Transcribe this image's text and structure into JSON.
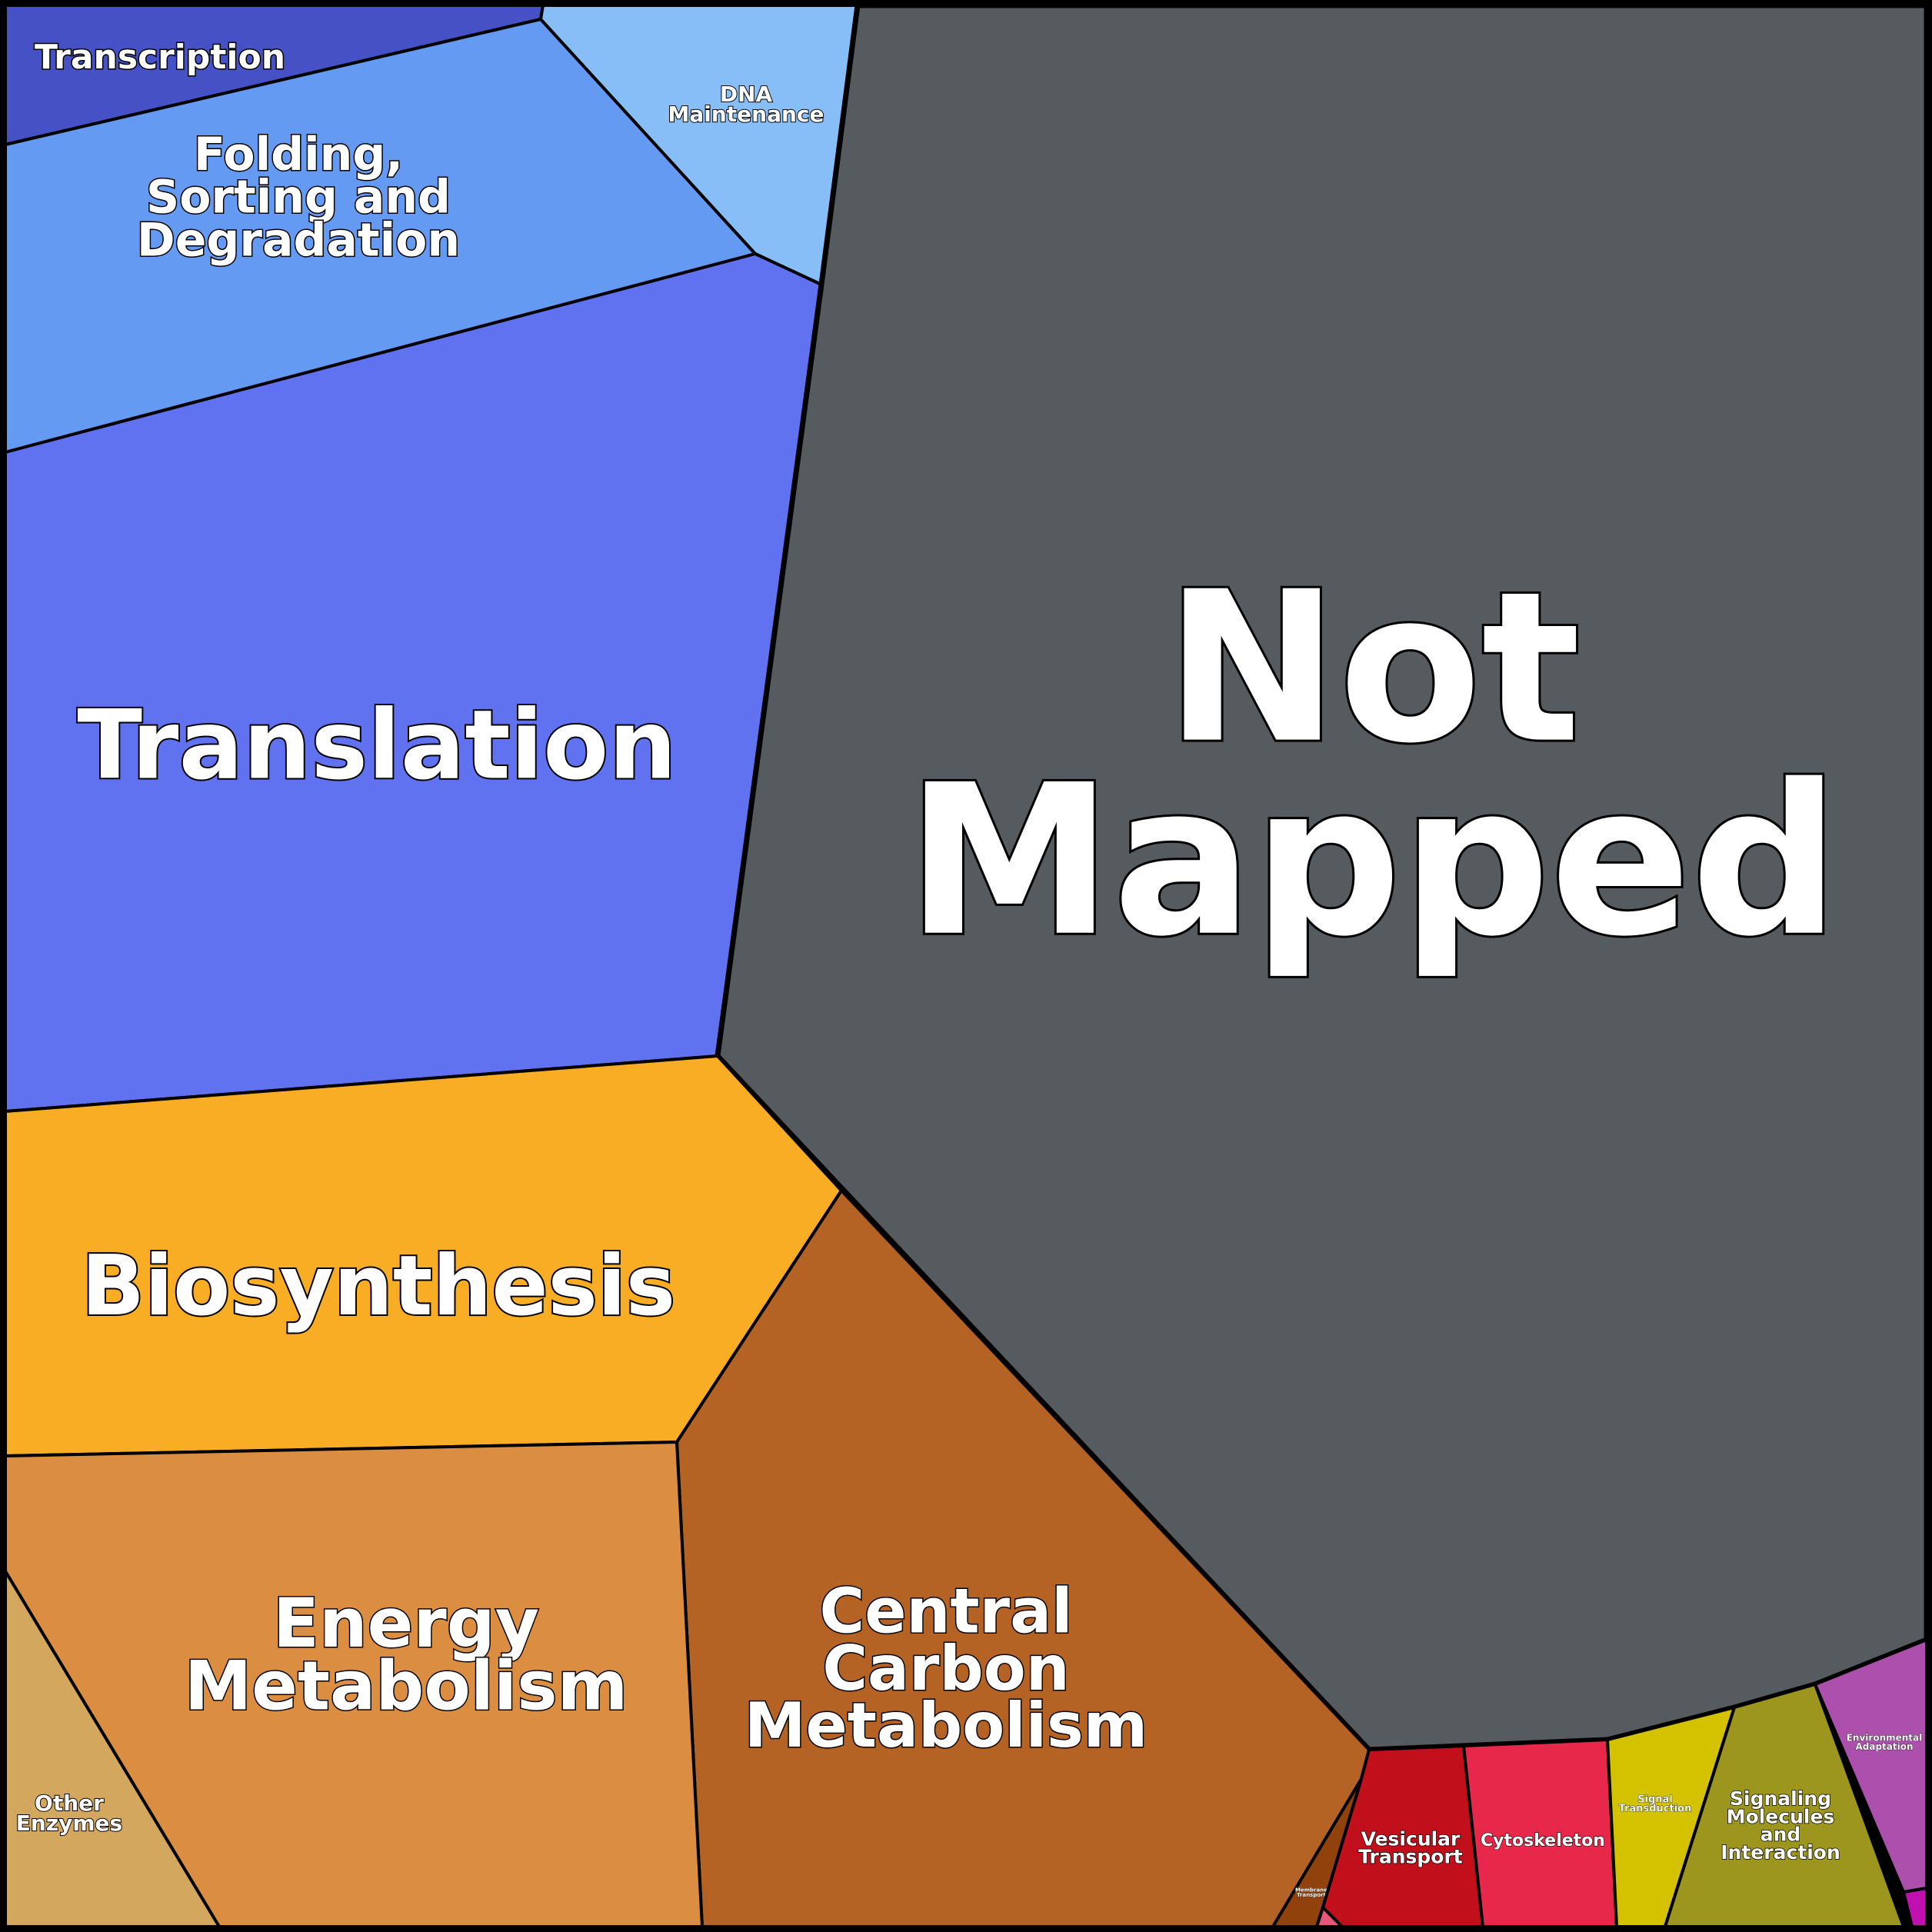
{
  "regions": [
    {
      "id": "transcription",
      "lines": [
        "Transcription"
      ],
      "color": "#4551c4"
    },
    {
      "id": "folding",
      "lines": [
        "Folding,",
        "Sorting and",
        "Degradation"
      ],
      "color": "#659af2"
    },
    {
      "id": "dna",
      "lines": [
        "DNA",
        "Maintenance"
      ],
      "color": "#87bef7"
    },
    {
      "id": "translation",
      "lines": [
        "Translation"
      ],
      "color": "#6072f0"
    },
    {
      "id": "not-mapped",
      "lines": [
        "Not",
        "Mapped"
      ],
      "color": "#565b60"
    },
    {
      "id": "biosynthesis",
      "lines": [
        "Biosynthesis"
      ],
      "color": "#f8ad25"
    },
    {
      "id": "central-carbon",
      "lines": [
        "Central",
        "Carbon",
        "Metabolism"
      ],
      "color": "#b56324"
    },
    {
      "id": "energy",
      "lines": [
        "Energy",
        "Metabolism"
      ],
      "color": "#db8e42"
    },
    {
      "id": "other-enzymes",
      "lines": [
        "Other",
        "Enzymes"
      ],
      "color": "#d4a75f"
    },
    {
      "id": "vesicular",
      "lines": [
        "Vesicular",
        "Transport"
      ],
      "color": "#c10f1c"
    },
    {
      "id": "cytoskeleton",
      "lines": [
        "Cytoskeleton"
      ],
      "color": "#e8284a"
    },
    {
      "id": "signal-transduction",
      "lines": [
        "Signal",
        "Transduction"
      ],
      "color": "#d4c100"
    },
    {
      "id": "signaling-molecules",
      "lines": [
        "Signaling",
        "Molecules",
        "and",
        "Interaction"
      ],
      "color": "#9c961e"
    },
    {
      "id": "environmental",
      "lines": [
        "Environmental",
        "Adaptation"
      ],
      "color": "#ad4fad"
    },
    {
      "id": "membrane-transport",
      "lines": [
        "Membrane",
        "Transport"
      ],
      "color": "#91420c"
    },
    {
      "id": "tiny-pink",
      "lines": [],
      "color": "#e8577a"
    },
    {
      "id": "tiny-magenta",
      "lines": [],
      "color": "#c011b0"
    }
  ]
}
